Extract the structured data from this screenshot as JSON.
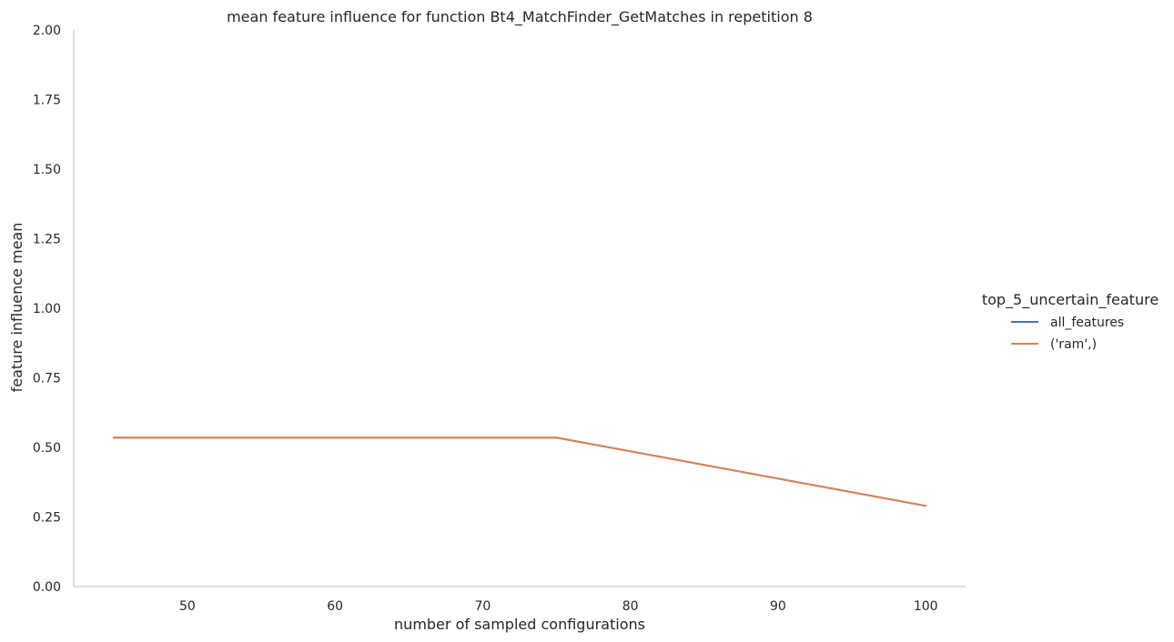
{
  "chart_data": {
    "type": "line",
    "title": "mean feature influence for function Bt4_MatchFinder_GetMatches in repetition 8",
    "xlabel": "number of sampled configurations",
    "ylabel": "feature influence mean",
    "xlim": [
      42.3,
      102.7
    ],
    "ylim": [
      0,
      2
    ],
    "xticks": [
      50,
      60,
      70,
      80,
      90,
      100
    ],
    "yticks": [
      0.0,
      0.25,
      0.5,
      0.75,
      1.0,
      1.25,
      1.5,
      1.75,
      2.0
    ],
    "ytick_labels": [
      "0.00",
      "0.25",
      "0.50",
      "0.75",
      "1.00",
      "1.25",
      "1.50",
      "1.75",
      "2.00"
    ],
    "grid": false,
    "legend": {
      "title": "top_5_uncertain_feature",
      "placement": "right"
    },
    "series": [
      {
        "name": "all_features",
        "color": "#4c72b0",
        "x": [
          45,
          75,
          100
        ],
        "y": [
          0.535,
          0.535,
          0.29
        ]
      },
      {
        "name": "('ram',)",
        "color": "#dd8452",
        "x": [
          45,
          75,
          100
        ],
        "y": [
          0.535,
          0.535,
          0.29
        ]
      }
    ]
  }
}
